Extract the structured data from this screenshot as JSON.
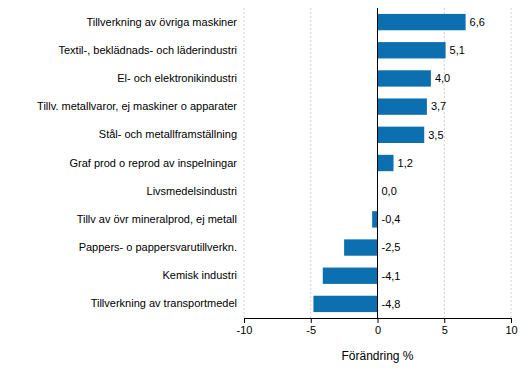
{
  "chart_data": {
    "type": "bar",
    "orientation": "horizontal",
    "x_label": "Förändring %",
    "categories": [
      "Tillverkning av övriga maskiner",
      "Textil-, beklädnads- och läderindustri",
      "El- och elektronikindustri",
      "Tillv. metallvaror, ej maskiner o apparater",
      "Stål- och metallframställning",
      "Graf prod o reprod av inspelningar",
      "Livsmedelsindustri",
      "Tillv av övr mineralprod, ej metall",
      "Pappers- o pappersvarutillverkn.",
      "Kemisk industri",
      "Tillverkning av transportmedel"
    ],
    "values": [
      6.6,
      5.1,
      4.0,
      3.7,
      3.5,
      1.2,
      0.0,
      -0.4,
      -2.5,
      -4.1,
      -4.8
    ],
    "value_labels": [
      "6,6",
      "5,1",
      "4,0",
      "3,7",
      "3,5",
      "1,2",
      "0,0",
      "-0,4",
      "-2,5",
      "-4,1",
      "-4,8"
    ],
    "data_labels": true,
    "color": "#0b6fb0",
    "xlim": [
      -10,
      10
    ],
    "xticks": [
      -10,
      -5,
      0,
      5,
      10
    ],
    "grid": true
  }
}
